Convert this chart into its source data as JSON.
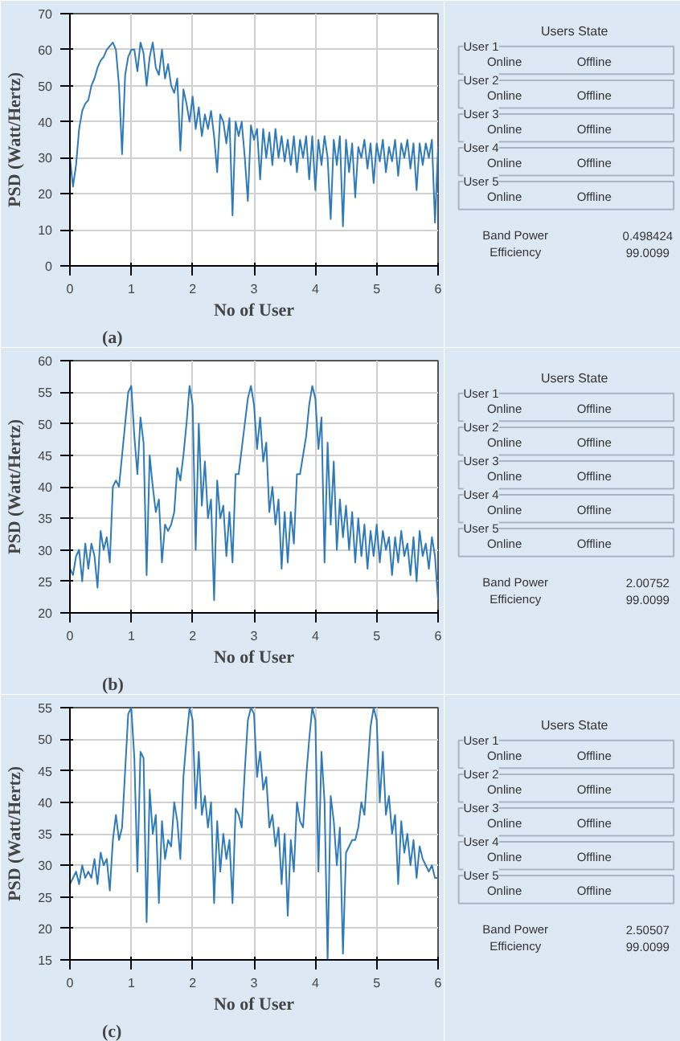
{
  "chart_data": [
    {
      "type": "line",
      "xlabel": "No of User",
      "ylabel": "PSD (Watt/Hertz)",
      "annotations": [
        "(a)"
      ],
      "xlim": [
        0,
        6
      ],
      "ylim": [
        0,
        70
      ],
      "xticks": [
        0,
        1,
        2,
        3,
        4,
        5,
        6
      ],
      "yticks": [
        0,
        10,
        20,
        30,
        40,
        50,
        60,
        70
      ],
      "grid": true,
      "x": [
        0,
        0.05,
        0.1,
        0.15,
        0.2,
        0.25,
        0.3,
        0.35,
        0.4,
        0.45,
        0.5,
        0.55,
        0.6,
        0.65,
        0.7,
        0.75,
        0.8,
        0.85,
        0.9,
        0.95,
        1,
        1.05,
        1.1,
        1.15,
        1.2,
        1.25,
        1.3,
        1.35,
        1.4,
        1.45,
        1.5,
        1.55,
        1.6,
        1.65,
        1.7,
        1.75,
        1.8,
        1.85,
        1.9,
        1.95,
        2,
        2.05,
        2.1,
        2.15,
        2.2,
        2.25,
        2.3,
        2.35,
        2.4,
        2.45,
        2.5,
        2.55,
        2.6,
        2.65,
        2.7,
        2.75,
        2.8,
        2.85,
        2.9,
        2.95,
        3,
        3.05,
        3.1,
        3.15,
        3.2,
        3.25,
        3.3,
        3.35,
        3.4,
        3.45,
        3.5,
        3.55,
        3.6,
        3.65,
        3.7,
        3.75,
        3.8,
        3.85,
        3.9,
        3.95,
        4,
        4.05,
        4.1,
        4.15,
        4.2,
        4.25,
        4.3,
        4.35,
        4.4,
        4.45,
        4.5,
        4.55,
        4.6,
        4.65,
        4.7,
        4.75,
        4.8,
        4.85,
        4.9,
        4.95,
        5,
        5.05,
        5.1,
        5.15,
        5.2,
        5.25,
        5.3,
        5.35,
        5.4,
        5.45,
        5.5,
        5.55,
        5.6,
        5.65,
        5.7,
        5.75,
        5.8,
        5.85,
        5.9,
        5.95,
        6
      ],
      "series": [
        {
          "color": "#2f7ab9",
          "values": [
            30,
            22,
            28,
            38,
            43,
            45,
            46,
            50,
            52,
            55,
            57,
            58,
            60,
            61,
            62,
            60,
            50,
            31,
            53,
            58,
            60,
            60,
            54,
            62,
            59,
            50,
            58,
            62,
            55,
            53,
            60,
            52,
            56,
            50,
            48,
            52,
            32,
            49,
            45,
            40,
            47,
            38,
            44,
            36,
            42,
            38,
            43,
            36,
            26,
            42,
            40,
            34,
            41,
            14,
            40,
            36,
            40,
            30,
            18,
            39,
            35,
            38,
            24,
            38,
            30,
            37,
            28,
            38,
            30,
            36,
            29,
            35,
            28,
            36,
            26,
            35,
            30,
            36,
            24,
            36,
            21,
            35,
            28,
            36,
            30,
            13,
            35,
            28,
            36,
            11,
            35,
            26,
            34,
            19,
            33,
            30,
            35,
            27,
            34,
            23,
            34,
            29,
            35,
            26,
            33,
            29,
            35,
            25,
            34,
            30,
            35,
            27,
            34,
            21,
            34,
            28,
            34,
            30,
            35,
            12,
            33
          ]
        }
      ]
    },
    {
      "type": "other",
      "title": "Users State",
      "categories": [
        "User 1",
        "User 2",
        "User 3",
        "User 4",
        "User 5"
      ],
      "annotations": [
        "Online",
        "Offline",
        "Band Power",
        "0.498424",
        "Efficiency",
        "99.0099"
      ]
    },
    {
      "type": "line",
      "xlabel": "No of User",
      "ylabel": "PSD (Watt/Hertz)",
      "annotations": [
        "(b)"
      ],
      "xlim": [
        0,
        6
      ],
      "ylim": [
        20,
        60
      ],
      "xticks": [
        0,
        1,
        2,
        3,
        4,
        5,
        6
      ],
      "yticks": [
        20,
        25,
        30,
        35,
        40,
        45,
        50,
        55,
        60
      ],
      "grid": true,
      "x": [
        0,
        0.05,
        0.1,
        0.15,
        0.2,
        0.25,
        0.3,
        0.35,
        0.4,
        0.45,
        0.5,
        0.55,
        0.6,
        0.65,
        0.7,
        0.75,
        0.8,
        0.85,
        0.9,
        0.95,
        1,
        1.05,
        1.1,
        1.15,
        1.2,
        1.25,
        1.3,
        1.35,
        1.4,
        1.45,
        1.5,
        1.55,
        1.6,
        1.65,
        1.7,
        1.75,
        1.8,
        1.85,
        1.9,
        1.95,
        2,
        2.05,
        2.1,
        2.15,
        2.2,
        2.25,
        2.3,
        2.35,
        2.4,
        2.45,
        2.5,
        2.55,
        2.6,
        2.65,
        2.7,
        2.75,
        2.8,
        2.85,
        2.9,
        2.95,
        3,
        3.05,
        3.1,
        3.15,
        3.2,
        3.25,
        3.3,
        3.35,
        3.4,
        3.45,
        3.5,
        3.55,
        3.6,
        3.65,
        3.7,
        3.75,
        3.8,
        3.85,
        3.9,
        3.95,
        4,
        4.05,
        4.1,
        4.15,
        4.2,
        4.25,
        4.3,
        4.35,
        4.4,
        4.45,
        4.5,
        4.55,
        4.6,
        4.65,
        4.7,
        4.75,
        4.8,
        4.85,
        4.9,
        4.95,
        5,
        5.05,
        5.1,
        5.15,
        5.2,
        5.25,
        5.3,
        5.35,
        5.4,
        5.45,
        5.5,
        5.55,
        5.6,
        5.65,
        5.7,
        5.75,
        5.8,
        5.85,
        5.9,
        5.95,
        6
      ],
      "series": [
        {
          "color": "#2f7ab9",
          "values": [
            27,
            26,
            29,
            30,
            25,
            31,
            27,
            31,
            29,
            24,
            33,
            30,
            32,
            28,
            40,
            41,
            40,
            45,
            50,
            55,
            56,
            48,
            42,
            51,
            47,
            26,
            45,
            40,
            36,
            38,
            28,
            34,
            33,
            34,
            36,
            43,
            41,
            45,
            50,
            56,
            53,
            30,
            50,
            37,
            44,
            35,
            38,
            22,
            41,
            35,
            37,
            29,
            36,
            28,
            42,
            42,
            46,
            50,
            54,
            56,
            53,
            46,
            51,
            44,
            47,
            36,
            40,
            34,
            38,
            27,
            36,
            28,
            36,
            31,
            42,
            42,
            45,
            48,
            53,
            56,
            54,
            46,
            51,
            28,
            47,
            34,
            44,
            30,
            38,
            32,
            37,
            30,
            36,
            28,
            35,
            29,
            34,
            27,
            33,
            29,
            34,
            28,
            33,
            30,
            32,
            26,
            32,
            28,
            33,
            29,
            31,
            26,
            32,
            25,
            33,
            29,
            31,
            27,
            32,
            29,
            22
          ]
        }
      ]
    },
    {
      "type": "other",
      "title": "Users State",
      "categories": [
        "User 1",
        "User 2",
        "User 3",
        "User 4",
        "User 5"
      ],
      "annotations": [
        "Online",
        "Offline",
        "Band Power",
        "2.00752",
        "Efficiency",
        "99.0099"
      ]
    },
    {
      "type": "line",
      "xlabel": "No of User",
      "ylabel": "PSD (Watt/Hertz)",
      "annotations": [
        "(c)"
      ],
      "xlim": [
        0,
        6
      ],
      "ylim": [
        15,
        55
      ],
      "xticks": [
        0,
        1,
        2,
        3,
        4,
        5,
        6
      ],
      "yticks": [
        15,
        20,
        25,
        30,
        35,
        40,
        45,
        50,
        55
      ],
      "grid": true,
      "x": [
        0,
        0.05,
        0.1,
        0.15,
        0.2,
        0.25,
        0.3,
        0.35,
        0.4,
        0.45,
        0.5,
        0.55,
        0.6,
        0.65,
        0.7,
        0.75,
        0.8,
        0.85,
        0.9,
        0.95,
        1,
        1.05,
        1.1,
        1.15,
        1.2,
        1.25,
        1.3,
        1.35,
        1.4,
        1.45,
        1.5,
        1.55,
        1.6,
        1.65,
        1.7,
        1.75,
        1.8,
        1.85,
        1.9,
        1.95,
        2,
        2.05,
        2.1,
        2.15,
        2.2,
        2.25,
        2.3,
        2.35,
        2.4,
        2.45,
        2.5,
        2.55,
        2.6,
        2.65,
        2.7,
        2.75,
        2.8,
        2.85,
        2.9,
        2.95,
        3,
        3.05,
        3.1,
        3.15,
        3.2,
        3.25,
        3.3,
        3.35,
        3.4,
        3.45,
        3.5,
        3.55,
        3.6,
        3.65,
        3.7,
        3.75,
        3.8,
        3.85,
        3.9,
        3.95,
        4,
        4.05,
        4.1,
        4.15,
        4.2,
        4.25,
        4.3,
        4.35,
        4.4,
        4.45,
        4.5,
        4.55,
        4.6,
        4.65,
        4.7,
        4.75,
        4.8,
        4.85,
        4.9,
        4.95,
        5,
        5.05,
        5.1,
        5.15,
        5.2,
        5.25,
        5.3,
        5.35,
        5.4,
        5.45,
        5.5,
        5.55,
        5.6,
        5.65,
        5.7,
        5.75,
        5.8,
        5.85,
        5.9,
        5.95,
        6
      ],
      "series": [
        {
          "color": "#2f7ab9",
          "values": [
            27,
            28,
            29,
            27,
            30,
            28,
            29,
            28,
            31,
            27,
            32,
            30,
            31,
            26,
            34,
            38,
            34,
            36,
            45,
            54,
            55,
            47,
            29,
            48,
            47,
            21,
            42,
            35,
            38,
            24,
            37,
            31,
            34,
            33,
            40,
            37,
            31,
            44,
            50,
            55,
            53,
            39,
            48,
            38,
            41,
            36,
            40,
            24,
            37,
            29,
            35,
            31,
            34,
            24,
            39,
            38,
            36,
            45,
            53,
            55,
            54,
            44,
            48,
            42,
            44,
            36,
            38,
            33,
            36,
            27,
            35,
            22,
            34,
            29,
            40,
            37,
            36,
            44,
            50,
            55,
            53,
            29,
            48,
            40,
            15,
            41,
            37,
            30,
            36,
            16,
            32,
            33,
            34,
            34,
            36,
            40,
            38,
            45,
            52,
            55,
            53,
            40,
            48,
            38,
            41,
            35,
            38,
            27,
            37,
            32,
            35,
            30,
            34,
            28,
            33,
            31,
            30,
            29,
            30,
            28,
            28
          ]
        }
      ]
    },
    {
      "type": "other",
      "title": "Users State",
      "categories": [
        "User 1",
        "User 2",
        "User 3",
        "User 4",
        "User 5"
      ],
      "annotations": [
        "Online",
        "Offline",
        "Band Power",
        "2.50507",
        "Efficiency",
        "99.0099"
      ]
    }
  ]
}
